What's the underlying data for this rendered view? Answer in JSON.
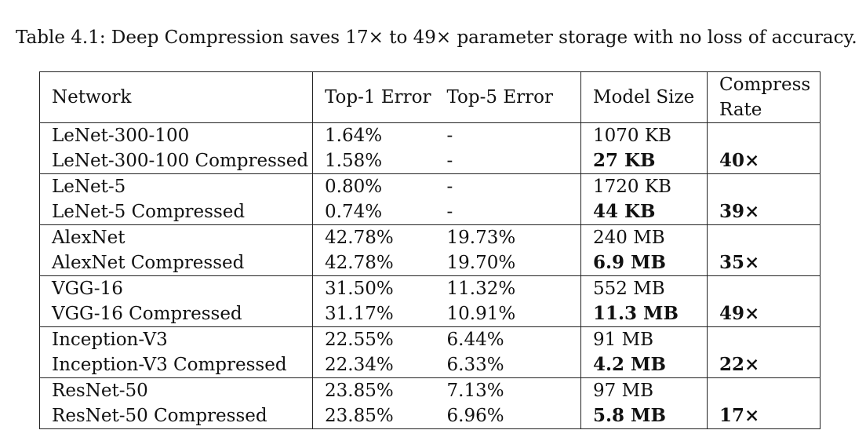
{
  "caption": "Table 4.1: Deep Compression saves 17× to 49× parameter storage with no loss of accuracy.",
  "table": {
    "headers": {
      "network": "Network",
      "top1": "Top-1 Error",
      "top5": "Top-5 Error",
      "size": "Model Size",
      "rate_line1": "Compress",
      "rate_line2": "Rate"
    },
    "groups": [
      {
        "base": {
          "network": "LeNet-300-100",
          "top1": "1.64%",
          "top5": "-",
          "size": "1070 KB"
        },
        "compressed": {
          "network": "LeNet-300-100 Compressed",
          "top1": "1.58%",
          "top5": "-",
          "size": "27 KB",
          "rate": "40×"
        }
      },
      {
        "base": {
          "network": "LeNet-5",
          "top1": "0.80%",
          "top5": "-",
          "size": "1720 KB"
        },
        "compressed": {
          "network": "LeNet-5 Compressed",
          "top1": "0.74%",
          "top5": "-",
          "size": "44 KB",
          "rate": "39×"
        }
      },
      {
        "base": {
          "network": "AlexNet",
          "top1": "42.78%",
          "top5": "19.73%",
          "size": "240 MB"
        },
        "compressed": {
          "network": "AlexNet Compressed",
          "top1": "42.78%",
          "top5": "19.70%",
          "size": "6.9 MB",
          "rate": "35×"
        }
      },
      {
        "base": {
          "network": "VGG-16",
          "top1": "31.50%",
          "top5": "11.32%",
          "size": "552 MB"
        },
        "compressed": {
          "network": "VGG-16 Compressed",
          "top1": "31.17%",
          "top5": "10.91%",
          "size": "11.3 MB",
          "rate": "49×"
        }
      },
      {
        "base": {
          "network": "Inception-V3",
          "top1": "22.55%",
          "top5": "6.44%",
          "size": "91 MB"
        },
        "compressed": {
          "network": "Inception-V3 Compressed",
          "top1": "22.34%",
          "top5": "6.33%",
          "size": "4.2 MB",
          "rate": "22×"
        }
      },
      {
        "base": {
          "network": "ResNet-50",
          "top1": "23.85%",
          "top5": "7.13%",
          "size": "97 MB"
        },
        "compressed": {
          "network": "ResNet-50 Compressed",
          "top1": "23.85%",
          "top5": "6.96%",
          "size": "5.8 MB",
          "rate": "17×"
        }
      }
    ]
  }
}
